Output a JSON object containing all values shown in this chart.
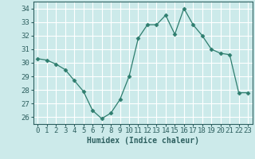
{
  "x": [
    0,
    1,
    2,
    3,
    4,
    5,
    6,
    7,
    8,
    9,
    10,
    11,
    12,
    13,
    14,
    15,
    16,
    17,
    18,
    19,
    20,
    21,
    22,
    23
  ],
  "y": [
    30.3,
    30.2,
    29.9,
    29.5,
    28.7,
    27.9,
    26.5,
    25.9,
    26.3,
    27.3,
    29.0,
    31.8,
    32.8,
    32.8,
    33.5,
    32.1,
    34.0,
    32.8,
    32.0,
    31.0,
    30.7,
    30.6,
    27.8,
    27.8
  ],
  "title": "",
  "xlabel": "Humidex (Indice chaleur)",
  "ylabel": "",
  "ylim": [
    25.5,
    34.5
  ],
  "xlim": [
    -0.5,
    23.5
  ],
  "yticks": [
    26,
    27,
    28,
    29,
    30,
    31,
    32,
    33,
    34
  ],
  "xticks": [
    0,
    1,
    2,
    3,
    4,
    5,
    6,
    7,
    8,
    9,
    10,
    11,
    12,
    13,
    14,
    15,
    16,
    17,
    18,
    19,
    20,
    21,
    22,
    23
  ],
  "line_color": "#2e7d6e",
  "marker": "D",
  "marker_size": 2.5,
  "bg_color": "#cceaea",
  "grid_color": "#ffffff",
  "tick_label_color": "#2e6060",
  "xlabel_color": "#2e6060",
  "xlabel_fontsize": 7,
  "tick_fontsize": 6.5
}
